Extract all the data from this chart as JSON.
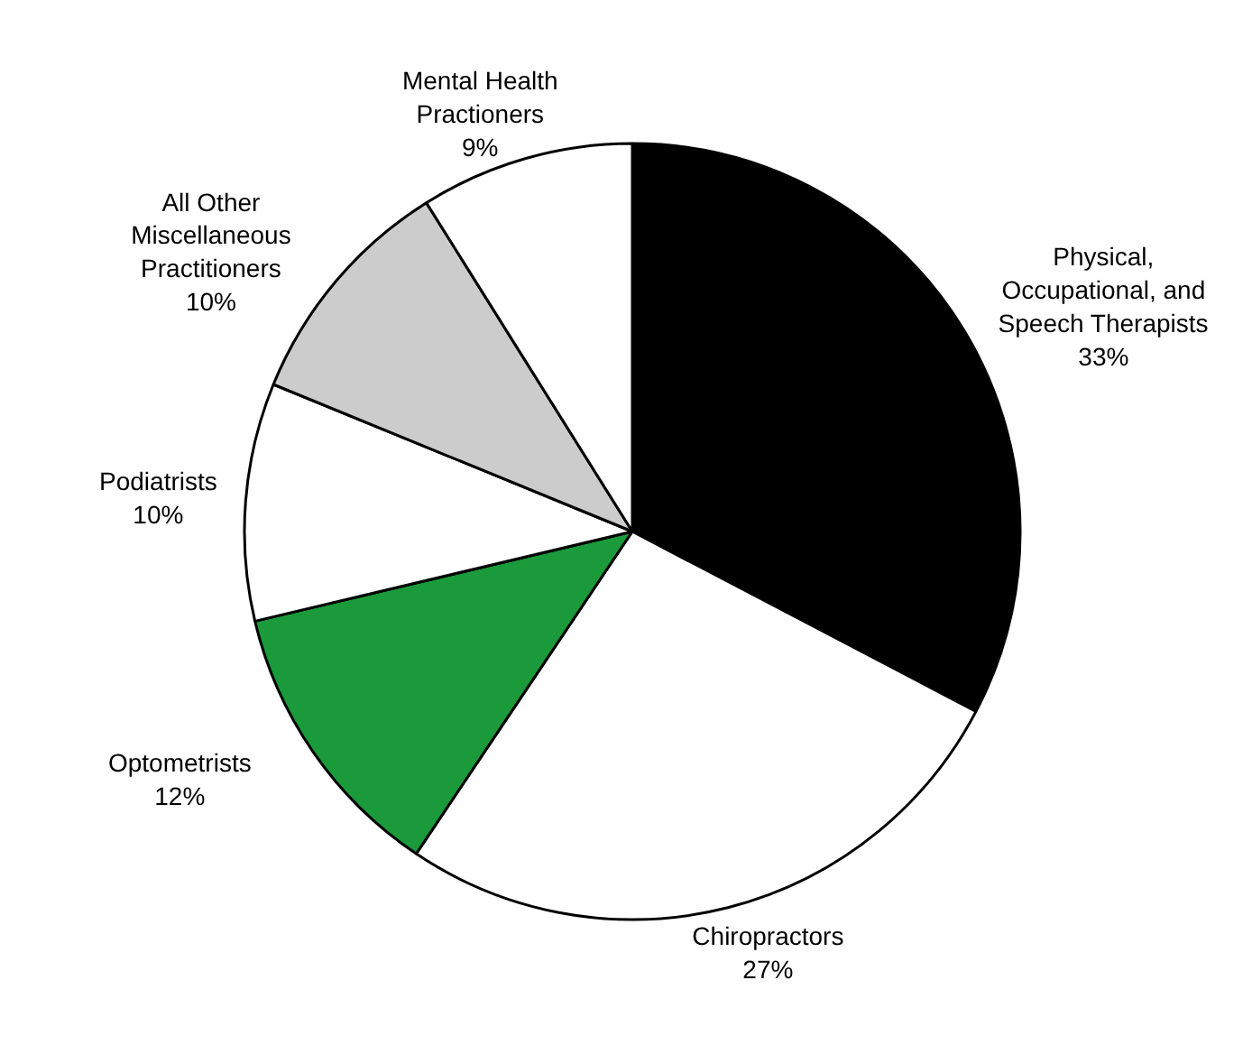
{
  "chart_data": {
    "type": "pie",
    "categories": [
      "Physical,\nOccupational, and\nSpeech Therapists",
      "Chiropractors",
      "Optometrists",
      "Podiatrists",
      "All Other\nMiscellaneous\nPractitioners",
      "Mental Health\nPractioners"
    ],
    "values": [
      33,
      27,
      12,
      10,
      10,
      9
    ],
    "value_labels": [
      "33%",
      "27%",
      "12%",
      "10%",
      "10%",
      "9%"
    ],
    "colors": [
      "#000000",
      "#ffffff",
      "#1a9a3a",
      "#ffffff",
      "#cccccc",
      "#ffffff"
    ]
  }
}
